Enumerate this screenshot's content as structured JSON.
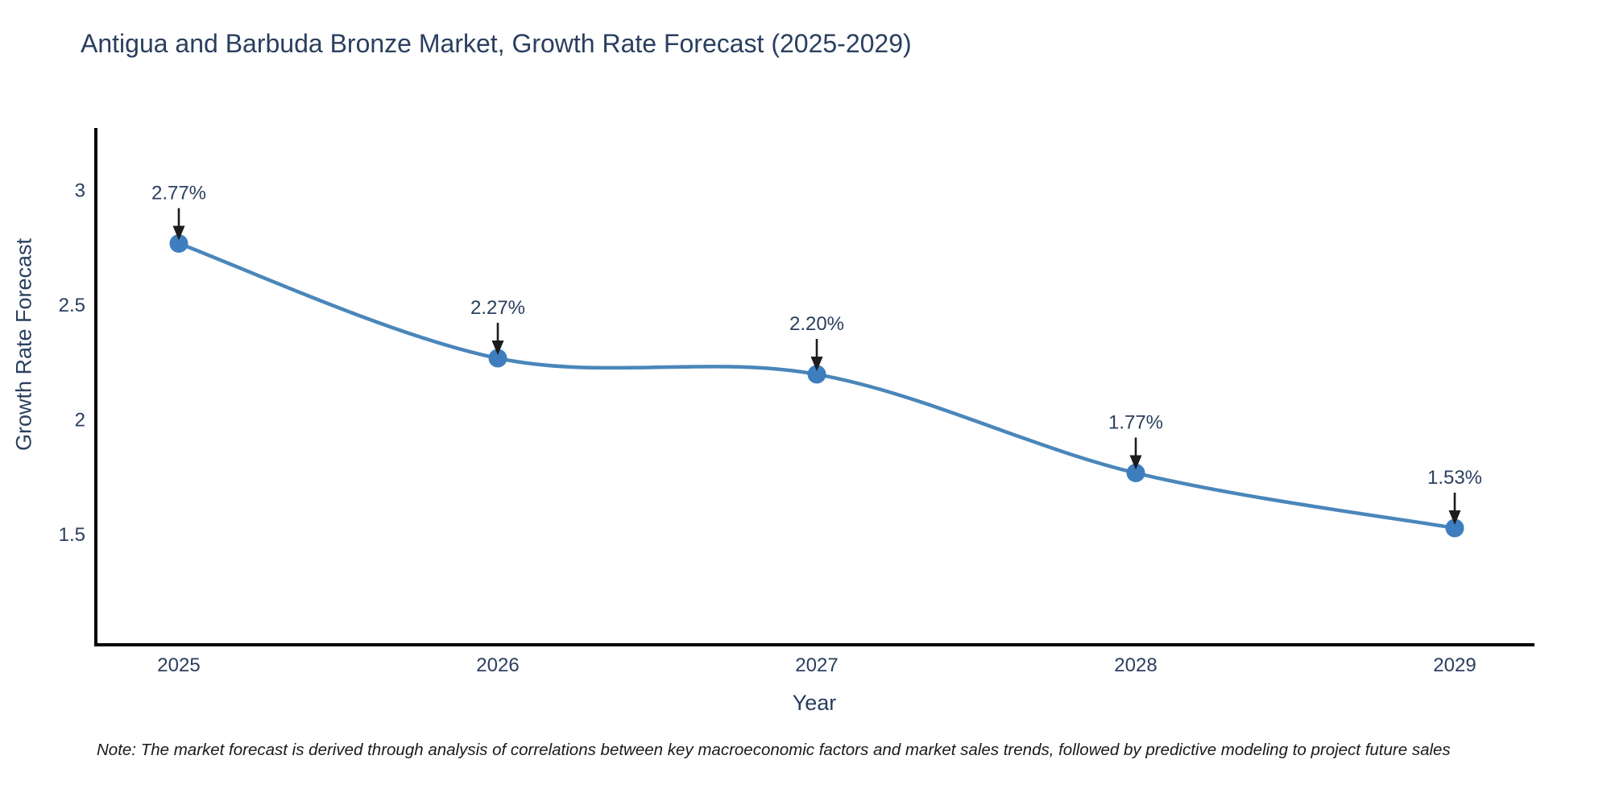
{
  "title": "Antigua and Barbuda Bronze Market, Growth Rate Forecast (2025-2029)",
  "note": "Note: The market forecast is derived through analysis of correlations between key macroeconomic factors and market sales trends, followed by predictive modeling to project future sales",
  "chart_data": {
    "type": "line",
    "curve": "spline",
    "title": "Antigua and Barbuda Bronze Market, Growth Rate Forecast (2025-2029)",
    "xlabel": "Year",
    "ylabel": "Growth Rate Forecast",
    "x": [
      2025,
      2026,
      2027,
      2028,
      2029
    ],
    "values": [
      2.77,
      2.27,
      2.2,
      1.77,
      1.53
    ],
    "point_labels": [
      "2.77%",
      "2.27%",
      "2.20%",
      "1.77%",
      "1.53%"
    ],
    "xtick_labels": [
      "2025",
      "2026",
      "2027",
      "2028",
      "2029"
    ],
    "ytick_values": [
      3,
      2.5,
      2,
      1.5
    ],
    "ytick_labels": [
      "3",
      "2.5",
      "2",
      "1.5"
    ],
    "xlim": [
      2024.74,
      2029.25
    ],
    "ylim": [
      1.02,
      3.27
    ],
    "grid": false,
    "legend_position": "none",
    "colors": {
      "line": "#4a86ba",
      "marker": "#3e7ebe",
      "axis": "#000000",
      "text": "#2a3f5f",
      "annotation_arrow": "#1c1c1c"
    }
  }
}
